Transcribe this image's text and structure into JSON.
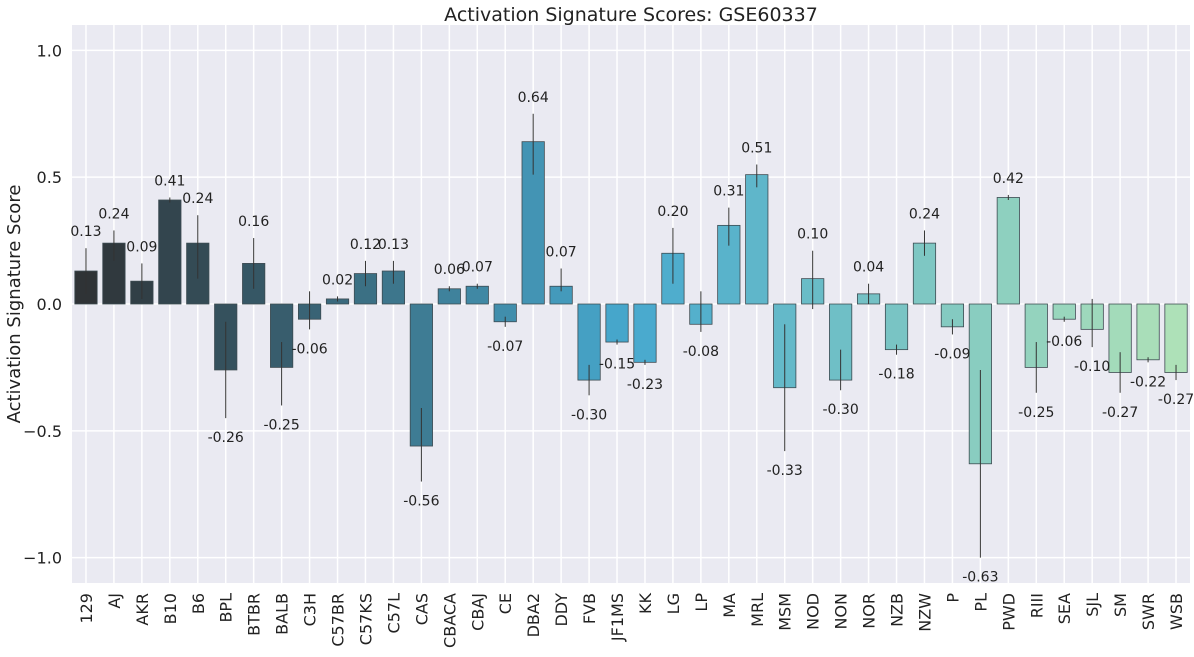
{
  "chart_data": {
    "type": "bar",
    "title": "Activation Signature Scores: GSE60337",
    "xlabel": "",
    "ylabel": "Activation Signature Score",
    "ylim": [
      -1.1,
      1.1
    ],
    "yticks": [
      -1.0,
      -0.5,
      0.0,
      0.5,
      1.0
    ],
    "ytick_labels": [
      "−1.0",
      "−0.5",
      "0.0",
      "0.5",
      "1.0"
    ],
    "grid": true,
    "categories": [
      "129",
      "AJ",
      "AKR",
      "B10",
      "B6",
      "BPL",
      "BTBR",
      "BALB",
      "C3H",
      "C57BR",
      "C57KS",
      "C57L",
      "CAS",
      "CBACA",
      "CBAJ",
      "CE",
      "DBA2",
      "DDY",
      "FVB",
      "JF1MS",
      "KK",
      "LG",
      "LP",
      "MA",
      "MRL",
      "MSM",
      "NOD",
      "NON",
      "NOR",
      "NZB",
      "NZW",
      "P",
      "PL",
      "PWD",
      "RIII",
      "SEA",
      "SJL",
      "SM",
      "SWR",
      "WSB"
    ],
    "values": [
      0.13,
      0.24,
      0.09,
      0.41,
      0.24,
      -0.26,
      0.16,
      -0.25,
      -0.06,
      0.02,
      0.12,
      0.13,
      -0.56,
      0.06,
      0.07,
      -0.07,
      0.64,
      0.07,
      -0.3,
      -0.15,
      -0.23,
      0.2,
      -0.08,
      0.31,
      0.51,
      -0.33,
      0.1,
      -0.3,
      0.04,
      -0.18,
      0.24,
      -0.09,
      -0.63,
      0.42,
      -0.25,
      -0.06,
      -0.1,
      -0.27,
      -0.22,
      -0.27
    ],
    "value_labels": [
      "0.13",
      "0.24",
      "0.09",
      "0.41",
      "0.24",
      "-0.26",
      "0.16",
      "-0.25",
      "-0.06",
      "0.02",
      "0.12",
      "0.13",
      "-0.56",
      "0.06",
      "0.07",
      "-0.07",
      "0.64",
      "0.07",
      "-0.30",
      "-0.15",
      "-0.23",
      "0.20",
      "-0.08",
      "0.31",
      "0.51",
      "-0.33",
      "0.10",
      "-0.30",
      "0.04",
      "-0.18",
      "0.24",
      "-0.09",
      "-0.63",
      "0.42",
      "-0.25",
      "-0.06",
      "-0.10",
      "-0.27",
      "-0.22",
      "-0.27"
    ],
    "error_low": [
      0.04,
      0.17,
      0.02,
      0.4,
      0.1,
      -0.45,
      0.06,
      -0.4,
      -0.1,
      0.01,
      0.07,
      0.08,
      -0.7,
      0.05,
      0.06,
      -0.09,
      0.51,
      0.05,
      -0.36,
      -0.16,
      -0.24,
      0.08,
      -0.11,
      0.23,
      0.46,
      -0.58,
      -0.02,
      -0.34,
      0.0,
      -0.2,
      0.19,
      -0.12,
      -1.0,
      0.41,
      -0.35,
      -0.07,
      -0.17,
      -0.35,
      -0.23,
      -0.3
    ],
    "error_high": [
      0.22,
      0.29,
      0.16,
      0.42,
      0.35,
      -0.07,
      0.26,
      -0.15,
      0.05,
      0.03,
      0.17,
      0.17,
      -0.41,
      0.07,
      0.08,
      -0.05,
      0.75,
      0.14,
      -0.24,
      -0.14,
      -0.22,
      0.3,
      0.05,
      0.38,
      0.55,
      -0.08,
      0.21,
      -0.18,
      0.08,
      -0.16,
      0.29,
      -0.06,
      -0.26,
      0.43,
      -0.15,
      -0.05,
      0.02,
      -0.19,
      -0.21,
      -0.24
    ],
    "palette_start": "#2f3336",
    "palette_mid": "#47a9cf",
    "palette_end": "#aee1b8",
    "background": "#eaeaf2",
    "gridline_color": "#ffffff"
  }
}
